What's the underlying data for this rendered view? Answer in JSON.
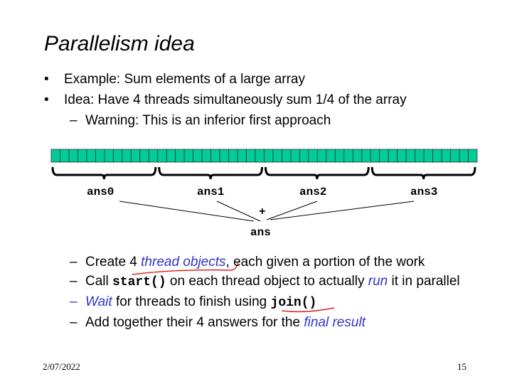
{
  "title": "Parallelism idea",
  "bullets": [
    {
      "marker": "•",
      "text": "Example: Sum elements of a large array"
    },
    {
      "marker": "•",
      "text": "Idea: Have 4 threads simultaneously sum 1/4 of the array"
    }
  ],
  "warning": {
    "marker": "–",
    "text": "Warning: This is an inferior first approach"
  },
  "diagram": {
    "cell_color": "#00cc99",
    "cell_count": 48,
    "group_labels": [
      "ans0",
      "ans1",
      "ans2",
      "ans3"
    ],
    "operator": "+",
    "result_label": "ans"
  },
  "steps": [
    {
      "marker": "–",
      "parts": [
        {
          "t": "Create 4 "
        },
        {
          "t": "thread objects",
          "style": "em"
        },
        {
          "t": ", each given a portion of the work"
        }
      ]
    },
    {
      "marker": "–",
      "parts": [
        {
          "t": "Call "
        },
        {
          "t": "start()",
          "style": "code"
        },
        {
          "t": " on each thread object to actually "
        },
        {
          "t": "run",
          "style": "em"
        },
        {
          "t": " it in parallel"
        }
      ]
    },
    {
      "marker": "–",
      "marker_color": "#3333cc",
      "parts": [
        {
          "t": "Wait",
          "style": "em"
        },
        {
          "t": " for threads to finish using "
        },
        {
          "t": "join()",
          "style": "code"
        }
      ]
    },
    {
      "marker": "–",
      "parts": [
        {
          "t": "Add together their 4 answers for the "
        },
        {
          "t": "final result",
          "style": "em"
        }
      ]
    }
  ],
  "accent_color": "#3333cc",
  "annotation_color": "#e02020",
  "footer": {
    "date": "2/07/2022",
    "page": "15"
  }
}
